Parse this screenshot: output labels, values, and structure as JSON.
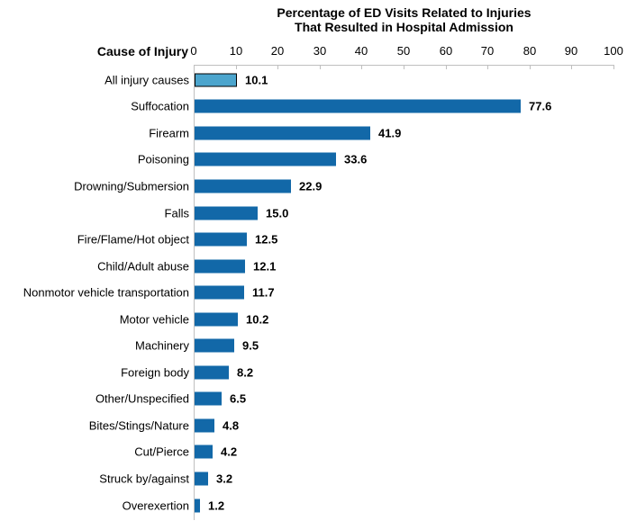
{
  "chart_data": {
    "type": "bar",
    "orientation": "horizontal",
    "title": "Percentage of ED Visits Related to Injuries That Resulted in Hospital Admission",
    "title_lines": [
      "Percentage of ED Visits Related to Injuries",
      "That Resulted in Hospital Admission"
    ],
    "y_axis_title": "Cause of Injury",
    "xlabel": "",
    "ylabel": "Cause of Injury",
    "xlim": [
      0,
      100
    ],
    "x_ticks": [
      "0",
      "10",
      "20",
      "30",
      "40",
      "50",
      "60",
      "70",
      "80",
      "90",
      "100"
    ],
    "grid": false,
    "data_labels": true,
    "categories": [
      "All injury causes",
      "Suffocation",
      "Firearm",
      "Poisoning",
      "Drowning/Submersion",
      "Falls",
      "Fire/Flame/Hot object",
      "Child/Adult abuse",
      "Nonmotor vehicle transportation",
      "Motor vehicle",
      "Machinery",
      "Foreign body",
      "Other/Unspecified",
      "Bites/Stings/Nature",
      "Cut/Pierce",
      "Struck by/against",
      "Overexertion"
    ],
    "values": [
      10.1,
      77.6,
      41.9,
      33.6,
      22.9,
      15.0,
      12.5,
      12.1,
      11.7,
      10.2,
      9.5,
      8.2,
      6.5,
      4.8,
      4.2,
      3.2,
      1.2
    ],
    "value_labels": [
      "10.1",
      "77.6",
      "41.9",
      "33.6",
      "22.9",
      "15.0",
      "12.5",
      "12.1",
      "11.7",
      "10.2",
      "9.5",
      "8.2",
      "6.5",
      "4.8",
      "4.2",
      "3.2",
      "1.2"
    ],
    "highlight_index": 0,
    "colors": {
      "default_bar": "#1268A8",
      "highlight_bar": "#4CA5CD",
      "highlight_border": "#000000",
      "axis_line": "#BFBFBF",
      "text": "#000000"
    }
  }
}
